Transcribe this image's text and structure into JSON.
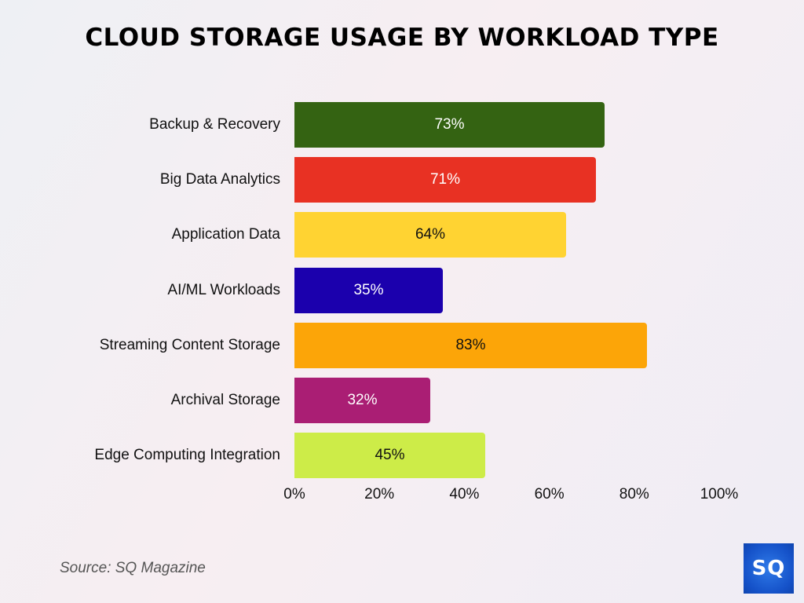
{
  "title": "CLOUD STORAGE USAGE BY WORKLOAD TYPE",
  "source": "Source: SQ Magazine",
  "logo": "SQ",
  "axis": {
    "ticks": [
      "0%",
      "20%",
      "40%",
      "60%",
      "80%",
      "100%"
    ]
  },
  "bars": [
    {
      "label": "Backup & Recovery",
      "value": 73,
      "text": "73%",
      "color": "#346312",
      "text_color": "#ffffff"
    },
    {
      "label": "Big Data Analytics",
      "value": 71,
      "text": "71%",
      "color": "#e83123",
      "text_color": "#ffffff"
    },
    {
      "label": "Application Data",
      "value": 64,
      "text": "64%",
      "color": "#ffd332",
      "text_color": "#111111"
    },
    {
      "label": "AI/ML Workloads",
      "value": 35,
      "text": "35%",
      "color": "#1b00ad",
      "text_color": "#ffffff"
    },
    {
      "label": "Streaming Content Storage",
      "value": 83,
      "text": "83%",
      "color": "#fca508",
      "text_color": "#111111"
    },
    {
      "label": "Archival Storage",
      "value": 32,
      "text": "32%",
      "color": "#aa1e74",
      "text_color": "#ffffff"
    },
    {
      "label": "Edge Computing Integration",
      "value": 45,
      "text": "45%",
      "color": "#cdec48",
      "text_color": "#111111"
    }
  ],
  "chart_data": {
    "type": "bar",
    "orientation": "horizontal",
    "title": "CLOUD STORAGE USAGE BY WORKLOAD TYPE",
    "categories": [
      "Backup & Recovery",
      "Big Data Analytics",
      "Application Data",
      "AI/ML Workloads",
      "Streaming Content Storage",
      "Archival Storage",
      "Edge Computing Integration"
    ],
    "values": [
      73,
      71,
      64,
      35,
      83,
      32,
      45
    ],
    "data_labels": [
      "73%",
      "71%",
      "64%",
      "35%",
      "83%",
      "32%",
      "45%"
    ],
    "xlabel": "",
    "ylabel": "",
    "xlim": [
      0,
      100
    ],
    "x_ticks": [
      "0%",
      "20%",
      "40%",
      "60%",
      "80%",
      "100%"
    ],
    "grid": false,
    "legend": "none",
    "source": "Source: SQ Magazine"
  }
}
